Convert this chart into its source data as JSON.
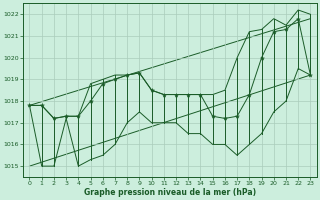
{
  "xlabel": "Graphe pression niveau de la mer (hPa)",
  "bg_color": "#cceedd",
  "grid_color": "#aaccbb",
  "line_color": "#1a5c28",
  "xlim": [
    -0.5,
    23.5
  ],
  "ylim": [
    1014.5,
    1022.5
  ],
  "yticks": [
    1015,
    1016,
    1017,
    1018,
    1019,
    1020,
    1021,
    1022
  ],
  "xticks": [
    0,
    1,
    2,
    3,
    4,
    5,
    6,
    7,
    8,
    9,
    10,
    11,
    12,
    13,
    14,
    15,
    16,
    17,
    18,
    19,
    20,
    21,
    22,
    23
  ],
  "hours": [
    0,
    1,
    2,
    3,
    4,
    5,
    6,
    7,
    8,
    9,
    10,
    11,
    12,
    13,
    14,
    15,
    16,
    17,
    18,
    19,
    20,
    21,
    22,
    23
  ],
  "pressure": [
    1017.8,
    1017.8,
    1017.2,
    1017.3,
    1017.3,
    1018.0,
    1018.8,
    1019.0,
    1019.2,
    1019.3,
    1018.5,
    1018.3,
    1018.3,
    1018.3,
    1018.3,
    1017.3,
    1017.2,
    1017.3,
    1018.3,
    1020.0,
    1021.2,
    1021.3,
    1021.8,
    1019.2
  ],
  "pmin": [
    1017.8,
    1015.0,
    1015.0,
    1017.2,
    1015.0,
    1015.3,
    1015.5,
    1016.0,
    1017.0,
    1017.5,
    1017.0,
    1017.0,
    1017.0,
    1016.5,
    1016.5,
    1016.0,
    1016.0,
    1015.5,
    1016.0,
    1016.5,
    1017.5,
    1018.0,
    1019.5,
    1019.2
  ],
  "pmax": [
    1017.8,
    1017.8,
    1017.2,
    1017.3,
    1017.3,
    1018.8,
    1019.0,
    1019.2,
    1019.2,
    1019.3,
    1018.5,
    1018.3,
    1018.3,
    1018.3,
    1018.3,
    1018.3,
    1018.5,
    1020.0,
    1021.2,
    1021.3,
    1021.8,
    1021.5,
    1022.2,
    1022.0
  ],
  "trend1_x": [
    0,
    23
  ],
  "trend1_y": [
    1017.8,
    1021.8
  ],
  "trend2_x": [
    0,
    23
  ],
  "trend2_y": [
    1015.0,
    1019.2
  ]
}
